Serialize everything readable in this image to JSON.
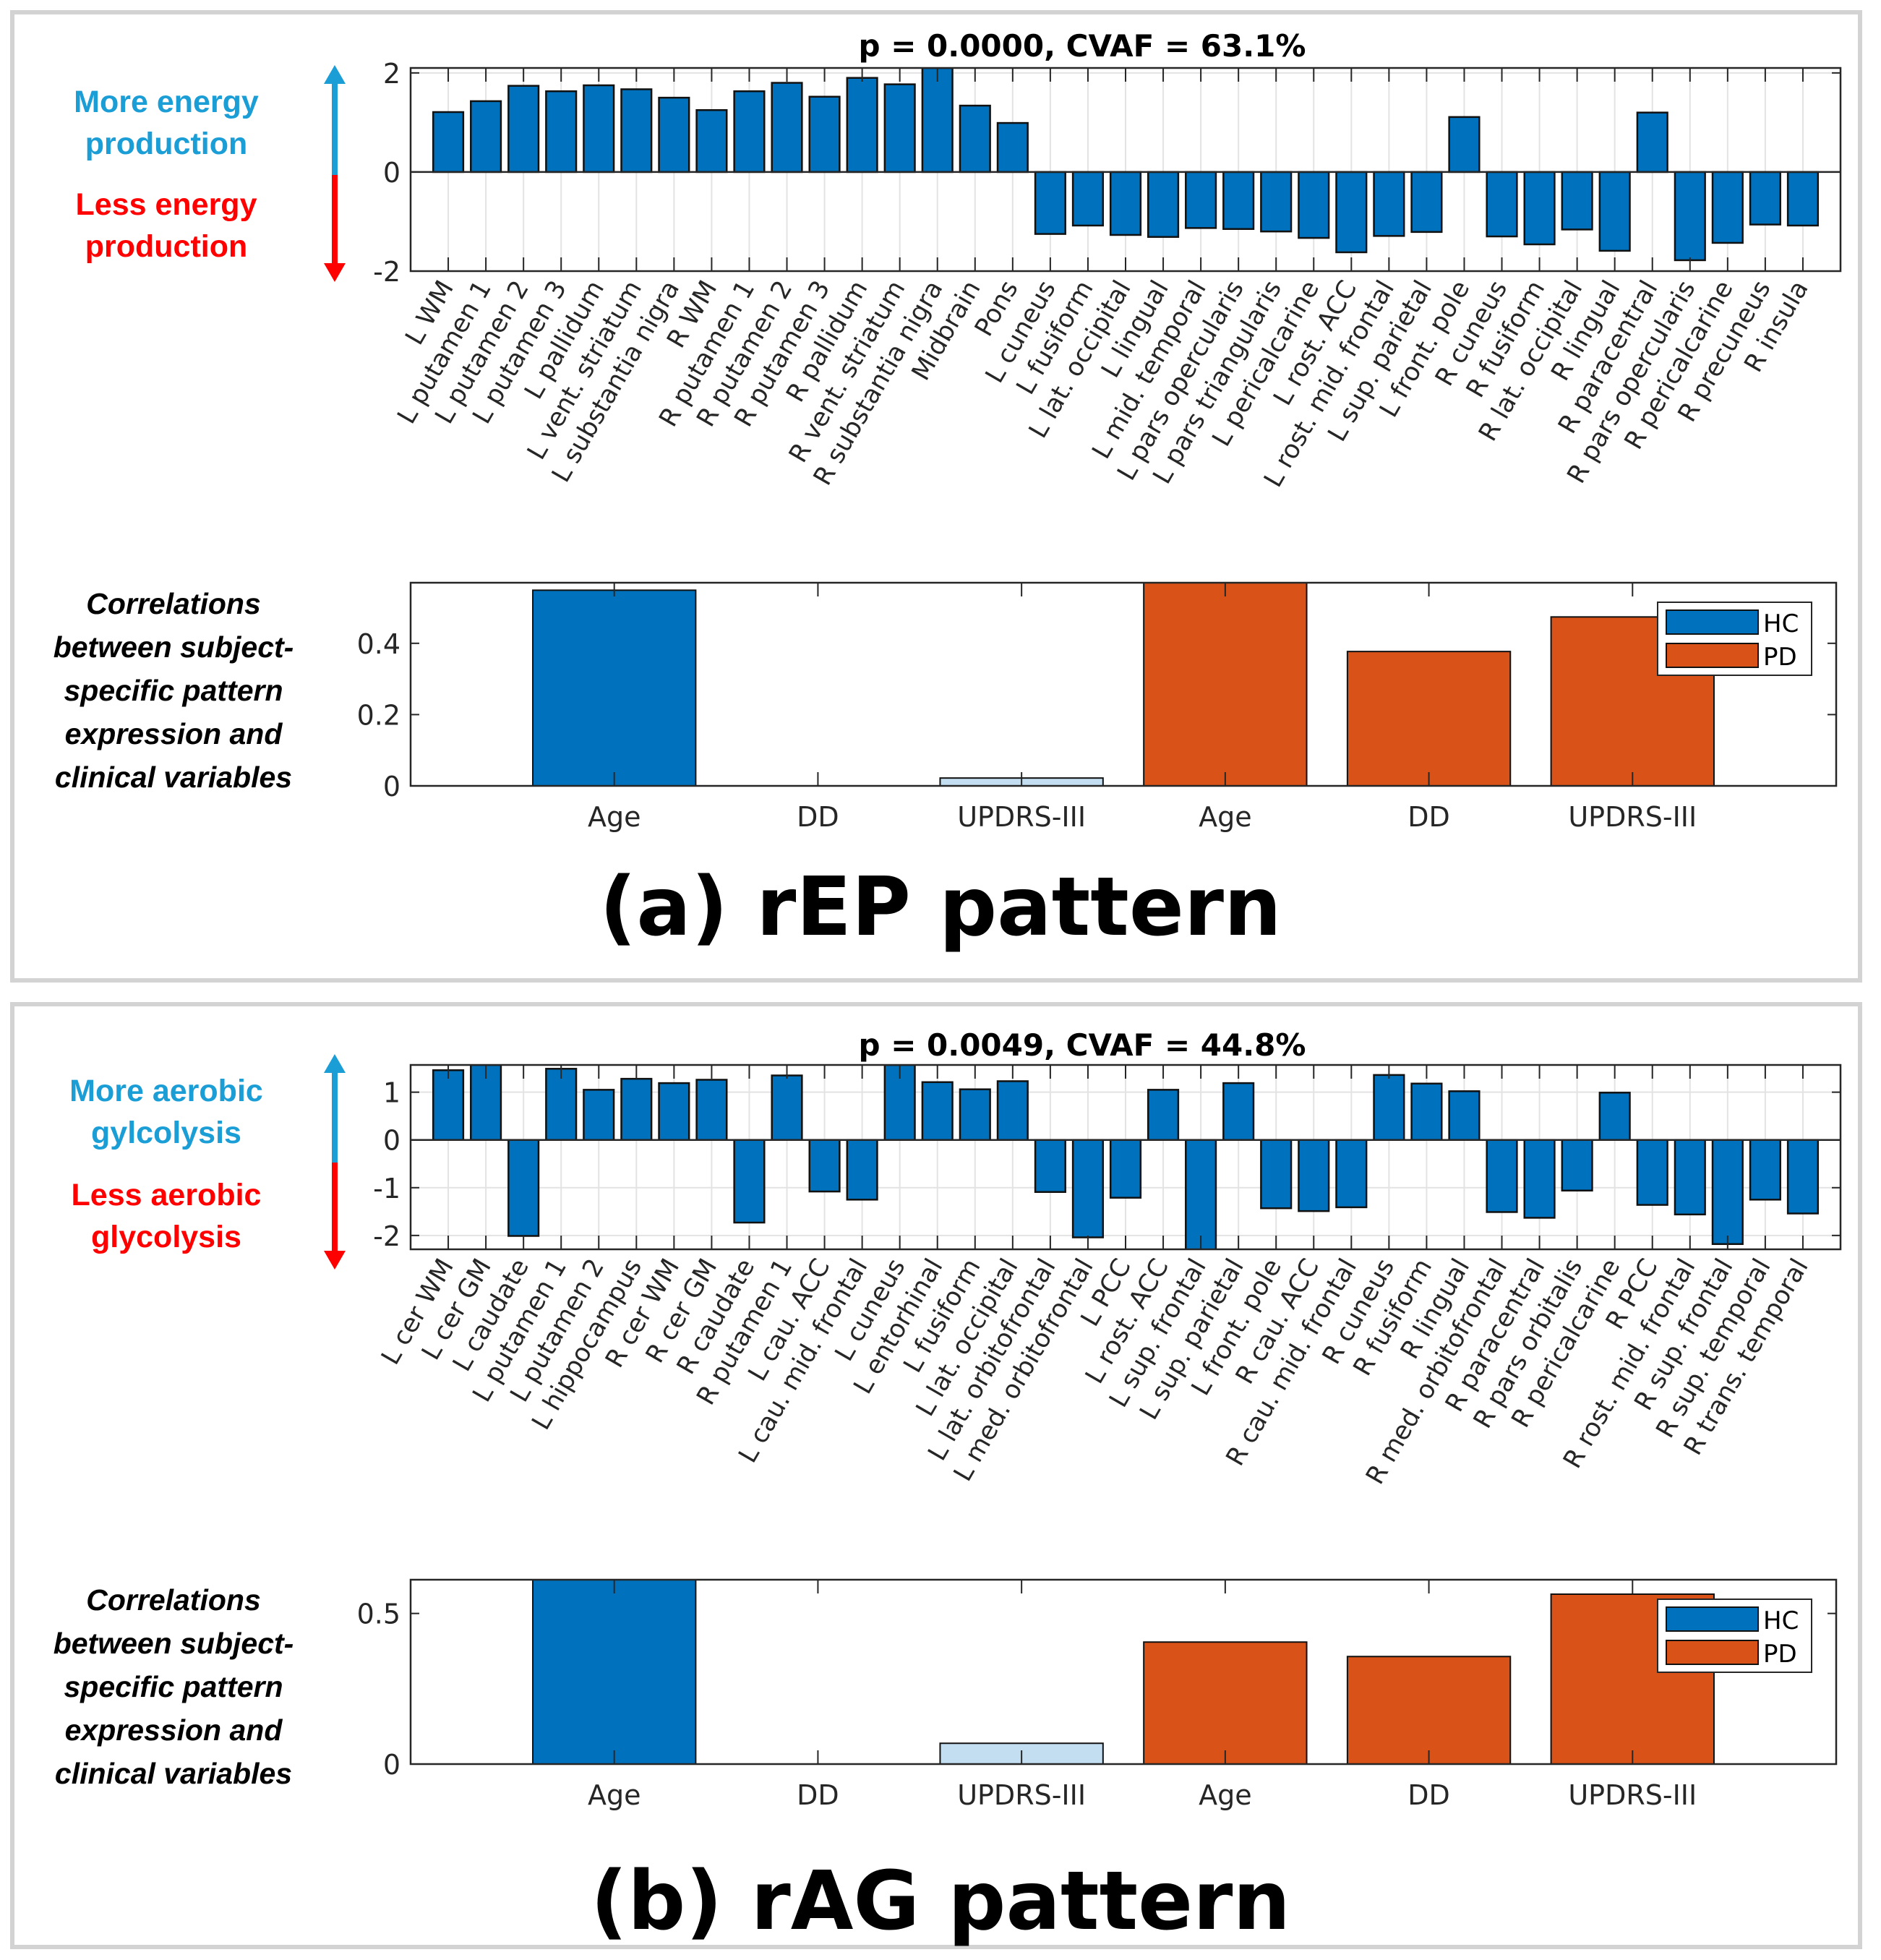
{
  "figure": {
    "panels": [
      {
        "id": "a",
        "caption": "(a) rEP pattern",
        "side_label_up": [
          "More energy",
          "production"
        ],
        "side_label_down": [
          "Less energy",
          "production"
        ],
        "corr_side_label": [
          "Correlations",
          "between subject-",
          "specific pattern",
          "expression and",
          "clinical variables"
        ]
      },
      {
        "id": "b",
        "caption": "(b) rAG pattern",
        "side_label_up": [
          "More aerobic",
          "gylcolysis"
        ],
        "side_label_down": [
          "Less aerobic",
          "glycolysis"
        ],
        "corr_side_label": [
          "Correlations",
          "between subject-",
          "specific pattern",
          "expression and",
          "clinical variables"
        ]
      }
    ],
    "colors": {
      "bar": "#0072bd",
      "hc": "#0072bd",
      "hc_nonsig": "#c3def0",
      "pd": "#d95319",
      "arrow_up": "#1b9dd6",
      "arrow_down": "#ff0000",
      "panel_border": "#d3d3d3"
    }
  },
  "chart_data": [
    {
      "type": "bar",
      "panel": "a",
      "title": "p = 0.0000, CVAF = 63.1%",
      "xlabel": "",
      "ylabel": "",
      "ylim": [
        -2.0,
        2.1
      ],
      "yticks": [
        -2,
        0,
        2
      ],
      "grid": "x",
      "categories": [
        "L WM",
        "L putamen 1",
        "L putamen 2",
        "L putamen 3",
        "L pallidum",
        "L vent. striatum",
        "L substantia nigra",
        "R WM",
        "R putamen 1",
        "R putamen 2",
        "R putamen 3",
        "R pallidum",
        "R vent. striatum",
        "R substantia nigra",
        "Midbrain",
        "Pons",
        "L cuneus",
        "L fusiform",
        "L lat. occipital",
        "L lingual",
        "L mid. temporal",
        "L pars opercularis",
        "L pars triangularis",
        "L pericalcarine",
        "L rost. ACC",
        "L rost. mid. frontal",
        "L sup. parietal",
        "L front. pole",
        "R cuneus",
        "R fusiform",
        "R lat. occipital",
        "R lingual",
        "R paracentral",
        "R pars opercularis",
        "R pericalcarine",
        "R precuneus",
        "R insula"
      ],
      "values": [
        1.21,
        1.43,
        1.74,
        1.63,
        1.75,
        1.67,
        1.5,
        1.25,
        1.63,
        1.8,
        1.52,
        1.9,
        1.77,
        2.1,
        1.34,
        0.99,
        -1.25,
        -1.08,
        -1.27,
        -1.31,
        -1.13,
        -1.15,
        -1.2,
        -1.33,
        -1.62,
        -1.29,
        -1.21,
        1.11,
        -1.3,
        -1.46,
        -1.16,
        -1.59,
        1.2,
        -1.78,
        -1.43,
        -1.06,
        -1.08
      ]
    },
    {
      "type": "bar",
      "panel": "a",
      "title": "",
      "xlabel": "",
      "ylabel": "",
      "ylim": [
        0,
        0.57
      ],
      "yticks": [
        0,
        0.2,
        0.4
      ],
      "legend": {
        "entries": [
          "HC",
          "PD"
        ],
        "position": "top-right"
      },
      "categories": [
        "Age",
        "DD",
        "UPDRS-III",
        "Age",
        "DD",
        "UPDRS-III"
      ],
      "groups": [
        "HC",
        "HC",
        "HC",
        "PD",
        "PD",
        "PD"
      ],
      "significant": [
        true,
        false,
        false,
        true,
        true,
        true
      ],
      "values": [
        0.549,
        0.0,
        0.022,
        0.58,
        0.377,
        0.474
      ]
    },
    {
      "type": "bar",
      "panel": "b",
      "title": "p = 0.0049, CVAF = 44.8%",
      "xlabel": "",
      "ylabel": "",
      "ylim": [
        -2.29,
        1.57
      ],
      "yticks": [
        -2,
        -1,
        0,
        1
      ],
      "grid": "both",
      "categories": [
        "L cer WM",
        "L cer GM",
        "L caudate",
        "L putamen 1",
        "L putamen 2",
        "L hippocampus",
        "R cer WM",
        "R cer GM",
        "R caudate",
        "R putamen 1",
        "L cau. ACC",
        "L cau. mid. frontal",
        "L cuneus",
        "L entorhinal",
        "L fusiform",
        "L lat. occipital",
        "L lat. orbitofrontal",
        "L med. orbitofrontal",
        "L PCC",
        "L rost. ACC",
        "L sup. frontal",
        "L sup. parietal",
        "L front. pole",
        "R cau. ACC",
        "R cau. mid. frontal",
        "R cuneus",
        "R fusiform",
        "R lingual",
        "R med. orbitofrontal",
        "R paracentral",
        "R pars orbitalis",
        "R pericalcarine",
        "R PCC",
        "R rost. mid. frontal",
        "R sup. frontal",
        "R sup. temporal",
        "R trans. temporal"
      ],
      "values": [
        1.46,
        1.57,
        -2.01,
        1.49,
        1.05,
        1.28,
        1.19,
        1.26,
        -1.73,
        1.35,
        -1.08,
        -1.25,
        1.57,
        1.21,
        1.06,
        1.23,
        -1.09,
        -2.04,
        -1.21,
        1.05,
        -2.3,
        1.19,
        -1.43,
        -1.49,
        -1.41,
        1.36,
        1.18,
        1.02,
        -1.51,
        -1.63,
        -1.06,
        0.99,
        -1.36,
        -1.56,
        -2.18,
        -1.25,
        -1.54
      ]
    },
    {
      "type": "bar",
      "panel": "b",
      "title": "",
      "xlabel": "",
      "ylabel": "",
      "ylim": [
        0,
        0.612
      ],
      "yticks": [
        0,
        0.5
      ],
      "legend": {
        "entries": [
          "HC",
          "PD"
        ],
        "position": "top-right"
      },
      "categories": [
        "Age",
        "DD",
        "UPDRS-III",
        "Age",
        "DD",
        "UPDRS-III"
      ],
      "groups": [
        "HC",
        "HC",
        "HC",
        "PD",
        "PD",
        "PD"
      ],
      "significant": [
        true,
        false,
        false,
        true,
        true,
        true
      ],
      "values": [
        0.62,
        0.0,
        0.069,
        0.405,
        0.357,
        0.564
      ]
    }
  ]
}
